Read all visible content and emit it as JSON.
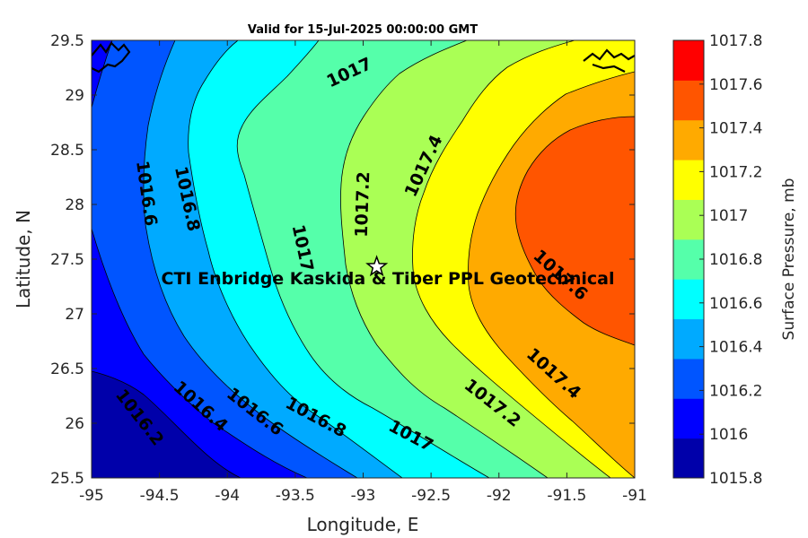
{
  "title": "Valid for 15-Jul-2025 00:00:00 GMT",
  "annotation": "CTI Enbridge  Kaskida & Tiber PPL Geotechnical",
  "chart_data": {
    "type": "heatmap",
    "subtype": "filled-contour",
    "xlabel": "Longitude, E",
    "ylabel": "Latitude, N",
    "xlim": [
      -95,
      -91
    ],
    "ylim": [
      25.5,
      29.5
    ],
    "xticks": [
      -95,
      -94.5,
      -94,
      -93.5,
      -93,
      -92.5,
      -92,
      -91.5,
      -91
    ],
    "yticks": [
      25.5,
      26,
      26.5,
      27,
      27.5,
      28,
      28.5,
      29,
      29.5
    ],
    "colorbar": {
      "label": "Surface Pressure, mb",
      "ticks": [
        1015.8,
        1016,
        1016.2,
        1016.4,
        1016.6,
        1016.8,
        1017,
        1017.2,
        1017.4,
        1017.6,
        1017.8
      ],
      "colors": [
        "#0000aa",
        "#0000ff",
        "#0055ff",
        "#00aaff",
        "#00ffff",
        "#55ffaa",
        "#aaff55",
        "#ffff00",
        "#ffaa00",
        "#ff5500",
        "#ff0000"
      ]
    },
    "contour_labels": [
      {
        "text": "1016.2",
        "lon": -94.65,
        "lat": 26.05,
        "angle": 52
      },
      {
        "text": "1016.4",
        "lon": -94.2,
        "lat": 26.15,
        "angle": 42
      },
      {
        "text": "1016.6",
        "lon": -93.8,
        "lat": 26.1,
        "angle": 38
      },
      {
        "text": "1016.8",
        "lon": -93.35,
        "lat": 26.05,
        "angle": 28
      },
      {
        "text": "1017",
        "lon": -92.65,
        "lat": 25.88,
        "angle": 28
      },
      {
        "text": "1017.2",
        "lon": -92.05,
        "lat": 26.18,
        "angle": 38
      },
      {
        "text": "1017.4",
        "lon": -91.6,
        "lat": 26.45,
        "angle": 42
      },
      {
        "text": "1016.6",
        "lon": -94.6,
        "lat": 28.1,
        "angle": 82
      },
      {
        "text": "1016.8",
        "lon": -94.3,
        "lat": 28.05,
        "angle": 78
      },
      {
        "text": "1017",
        "lon": -93.45,
        "lat": 27.6,
        "angle": 78
      },
      {
        "text": "1017.2",
        "lon": -93.0,
        "lat": 28.0,
        "angle": -88
      },
      {
        "text": "1017.4",
        "lon": -92.55,
        "lat": 28.35,
        "angle": -65
      },
      {
        "text": "1017.6",
        "lon": -91.55,
        "lat": 27.35,
        "angle": 42
      },
      {
        "text": "1017",
        "lon": -93.1,
        "lat": 29.2,
        "angle": -25
      }
    ],
    "site_marker": {
      "shape": "star",
      "lon": -92.9,
      "lat": 27.43
    }
  }
}
